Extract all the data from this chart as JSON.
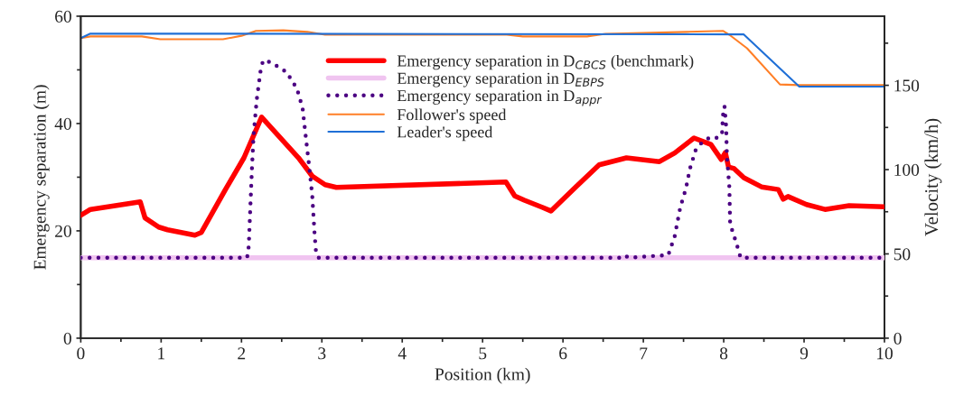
{
  "chart_data": {
    "type": "line",
    "xlabel": "Position (km)",
    "ylabel": "Emergency separation (m)",
    "y2label": "Velocity (km/h)",
    "xlim": [
      0,
      10
    ],
    "xticks": [
      0,
      {
        "value": 0.5,
        "label": null
      },
      1,
      {
        "value": 1.5,
        "label": null
      },
      2,
      {
        "value": 2.5,
        "label": null
      },
      3,
      {
        "value": 3.5,
        "label": null
      },
      4,
      {
        "value": 4.5,
        "label": null
      },
      5,
      {
        "value": 5.5,
        "label": null
      },
      6,
      {
        "value": 6.5,
        "label": null
      },
      7,
      {
        "value": 7.5,
        "label": null
      },
      8,
      {
        "value": 8.5,
        "label": null
      },
      9,
      {
        "value": 9.5,
        "label": null
      },
      10
    ],
    "ylim": [
      0,
      60
    ],
    "yticks": [
      0,
      {
        "value": 10,
        "label": null
      },
      20,
      {
        "value": 30,
        "label": null
      },
      40,
      {
        "value": 50,
        "label": null
      },
      60
    ],
    "y2lim": [
      0,
      191
    ],
    "y2ticks": [
      0,
      {
        "value": 25,
        "label": null
      },
      50,
      {
        "value": 75,
        "label": null
      },
      100,
      {
        "value": 125,
        "label": null
      },
      150,
      {
        "value": 175,
        "label": null
      }
    ],
    "grid": false,
    "legend": "top",
    "series": [
      {
        "name": "Emergency separation in D$_{CBCS}$ (benchmark)",
        "color": "#ff0000",
        "line_style": "solid",
        "x": [
          0,
          0.12,
          0.74,
          0.8,
          0.97,
          1.08,
          1.25,
          1.42,
          1.5,
          1.8,
          2.03,
          2.25,
          2.71,
          2.88,
          3.04,
          3.18,
          5.29,
          5.4,
          5.52,
          5.74,
          5.85,
          6.16,
          6.45,
          6.79,
          7.2,
          7.39,
          7.63,
          7.84,
          7.97,
          8.02,
          8.06,
          8.13,
          8.25,
          8.47,
          8.68,
          8.74,
          8.8,
          9.03,
          9.26,
          9.56,
          10
        ],
        "values": [
          22.9,
          24,
          25.4,
          22.4,
          20.7,
          20.2,
          19.7,
          19.2,
          19.7,
          27.7,
          33.6,
          41.2,
          33.6,
          30.2,
          28.6,
          28.1,
          29.1,
          26.5,
          25.7,
          24.4,
          23.7,
          28.2,
          32.3,
          33.6,
          32.9,
          34.5,
          37.3,
          36.1,
          33.3,
          34.6,
          31.9,
          31.6,
          29.9,
          28.2,
          27.7,
          25.9,
          26.4,
          24.9,
          24.0,
          24.7,
          24.5
        ]
      },
      {
        "name": "Emergency separation in D$_{EBPS}$",
        "color": "#f0c4f0",
        "line_style": "solid",
        "x": [
          0,
          10
        ],
        "values": [
          15,
          15
        ]
      },
      {
        "name": "Emergency separation in D$_{appr}$",
        "color": "#4b0082",
        "line_style": "dotted",
        "x": [
          0,
          2.07,
          2.09,
          2.11,
          2.13,
          2.15,
          2.19,
          2.24,
          2.27,
          2.37,
          2.56,
          2.69,
          2.76,
          2.8,
          2.84,
          2.88,
          2.91,
          2.93,
          2.96,
          6.7,
          6.76,
          6.82,
          7.31,
          7.39,
          7.46,
          7.53,
          7.58,
          7.65,
          7.73,
          7.84,
          7.93,
          7.98,
          7.99,
          8.01,
          8.03,
          8.04,
          8.07,
          8.08,
          8.16,
          8.21,
          10
        ],
        "values": [
          15,
          15,
          17.1,
          24.4,
          31.6,
          37.8,
          44.5,
          50.1,
          51.8,
          51.4,
          49.6,
          46.5,
          42.9,
          37.5,
          32.3,
          26.6,
          19.3,
          15.5,
          15,
          15,
          15.5,
          15,
          15.5,
          19,
          24.4,
          27.9,
          31.6,
          35,
          36.5,
          37.5,
          37.3,
          38.3,
          41.5,
          43.2,
          39.5,
          33.9,
          28.2,
          21.3,
          17.6,
          15,
          15
        ]
      },
      {
        "name": "Follower's speed",
        "color": "#ff7f27",
        "line_style": "solid",
        "axis": "y2",
        "x": [
          0,
          0.12,
          0.76,
          0.99,
          1.77,
          2.0,
          2.18,
          2.52,
          2.82,
          3.04,
          5.3,
          5.5,
          6.3,
          6.53,
          7.54,
          7.99,
          8.07,
          8.29,
          8.7,
          8.94,
          10
        ],
        "values": [
          178,
          179,
          179,
          177.3,
          177.3,
          179.4,
          182.3,
          182.6,
          181.7,
          180,
          180,
          179,
          179,
          180.5,
          181.7,
          182.3,
          180,
          172,
          150.5,
          150.1,
          150.1
        ]
      },
      {
        "name": "Leader's speed",
        "color": "#1f6fd6",
        "line_style": "solid",
        "axis": "y2",
        "x": [
          0,
          0.12,
          8.25,
          8.94,
          10
        ],
        "values": [
          178,
          180.7,
          180.2,
          149.2,
          149.2
        ]
      }
    ]
  }
}
